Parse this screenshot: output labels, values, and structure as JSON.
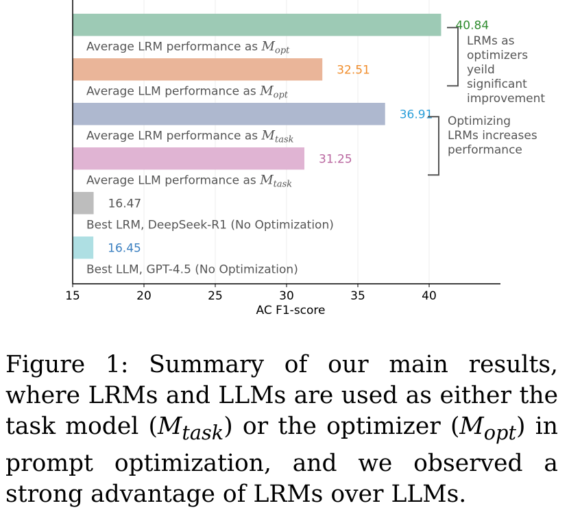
{
  "chart_data": {
    "type": "bar",
    "orientation": "horizontal",
    "xlabel": "AC F1-score",
    "xlim": [
      15,
      45
    ],
    "xticks": [
      15,
      20,
      25,
      30,
      35,
      40
    ],
    "grid": true,
    "bars": [
      {
        "label": "Average LRM performance as ",
        "sub": "opt",
        "value": 40.84,
        "value_text": "40.84",
        "color": "#9dcab5",
        "value_color": "#2e8b2e"
      },
      {
        "label": "Average LLM performance as ",
        "sub": "opt",
        "value": 32.51,
        "value_text": "32.51",
        "color": "#eab599",
        "value_color": "#f08c2a"
      },
      {
        "label": "Average LRM performance as ",
        "sub": "task",
        "value": 36.91,
        "value_text": "36.91",
        "color": "#aeb8cf",
        "value_color": "#2b9fd9"
      },
      {
        "label": "Average LLM performance as ",
        "sub": "task",
        "value": 31.25,
        "value_text": "31.25",
        "color": "#e0b4d3",
        "value_color": "#b8649e"
      },
      {
        "label": "Best LRM, DeepSeek-R1 (No Optimization)",
        "sub": "",
        "value": 16.47,
        "value_text": "16.47",
        "color": "#bdbdbd",
        "value_color": "#555555"
      },
      {
        "label": "Best LLM, GPT-4.5 (No Optimization)",
        "sub": "",
        "value": 16.45,
        "value_text": "16.45",
        "color": "#aedfe3",
        "value_color": "#3a7fc0"
      }
    ],
    "annotations": [
      {
        "lines": [
          "LRMs as",
          "optimizers",
          "yeild",
          "significant",
          "improvement"
        ],
        "bars": [
          0,
          1
        ]
      },
      {
        "lines": [
          "Optimizing",
          "LRMs increases",
          "performance"
        ],
        "bars": [
          2,
          3
        ]
      }
    ]
  },
  "math_symbol": "M",
  "caption": {
    "lead": "Figure 1: Summary of our main results, where LRMs and LLMs are used as either the task model (",
    "m1_sub": "task",
    "mid": ") or the optimizer (",
    "m2_sub": "opt",
    "tail": ") in prompt optimization, and we observed a strong advantage of LRMs over LLMs."
  }
}
